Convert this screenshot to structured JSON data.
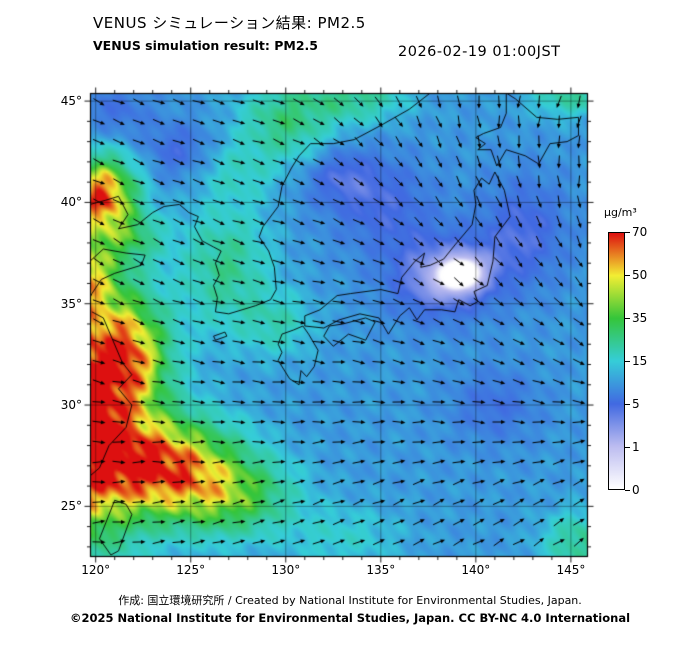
{
  "header": {
    "title_jp": "VENUS シミュレーション結果: PM2.5",
    "title_en": "VENUS simulation result: PM2.5",
    "timestamp": "2026-02-19 01:00JST"
  },
  "map": {
    "lat_labels": [
      {
        "label": "45°",
        "value": 45
      },
      {
        "label": "40°",
        "value": 40
      },
      {
        "label": "35°",
        "value": 35
      },
      {
        "label": "30°",
        "value": 30
      },
      {
        "label": "25°",
        "value": 25
      }
    ],
    "lon_labels": [
      {
        "label": "120°",
        "value": 120
      },
      {
        "label": "125°",
        "value": 125
      },
      {
        "label": "130°",
        "value": 130
      },
      {
        "label": "135°",
        "value": 135
      },
      {
        "label": "140°",
        "value": 140
      },
      {
        "label": "145°",
        "value": 145
      }
    ]
  },
  "colorbar": {
    "unit": "µg/m³",
    "tick_labels": [
      "70",
      "50",
      "35",
      "15",
      "5",
      "1",
      "0"
    ]
  },
  "footer": {
    "credit": "作成: 国立環境研究所 / Created by National Institute for Environmental Studies, Japan.",
    "license": "©2025 National Institute for Environmental Studies, Japan. CC BY-NC 4.0 International"
  },
  "chart_data": {
    "type": "heatmap",
    "title": "VENUS simulation result: PM2.5",
    "unit": "µg/m³",
    "lon_range": [
      119.7,
      145.9
    ],
    "lat_range": [
      22.5,
      45.4
    ],
    "lon_gridlines": [
      120,
      125,
      130,
      135,
      140,
      145
    ],
    "lat_gridlines": [
      25,
      30,
      35,
      40,
      45
    ],
    "scale_values": [
      0,
      1,
      5,
      15,
      35,
      50,
      70
    ],
    "scale_colors": [
      "#ffffff",
      "#bcbcf0",
      "#4169e1",
      "#35cdd8",
      "#35c53a",
      "#f2ee33",
      "#dd1010"
    ],
    "base_level": 10,
    "plumes": [
      {
        "lon": 118.5,
        "lat": 29.5,
        "amp": 75,
        "rx": 3.6,
        "ry": 5.5
      },
      {
        "lon": 119.0,
        "lat": 36.5,
        "amp": 35,
        "rx": 2.0,
        "ry": 2.0
      },
      {
        "lon": 120.3,
        "lat": 40.3,
        "amp": 55,
        "rx": 1.6,
        "ry": 1.7
      },
      {
        "lon": 122.0,
        "lat": 38.3,
        "amp": 15,
        "rx": 1.5,
        "ry": 1.2
      },
      {
        "lon": 121.8,
        "lat": 32.5,
        "amp": 35,
        "rx": 1.8,
        "ry": 2.5
      },
      {
        "lon": 123.5,
        "lat": 27.0,
        "amp": 50,
        "rx": 3.5,
        "ry": 2.2
      },
      {
        "lon": 127.0,
        "lat": 25.5,
        "amp": 25,
        "rx": 3.0,
        "ry": 1.8
      },
      {
        "lon": 126.8,
        "lat": 36.8,
        "amp": 14,
        "rx": 2.2,
        "ry": 2.8
      },
      {
        "lon": 129.5,
        "lat": 34.0,
        "amp": 9,
        "rx": 1.8,
        "ry": 1.5
      },
      {
        "lon": 130.0,
        "lat": 44.0,
        "amp": 16,
        "rx": 2.2,
        "ry": 1.8
      },
      {
        "lon": 133.5,
        "lat": 45.2,
        "amp": 14,
        "rx": 2.5,
        "ry": 1.2
      },
      {
        "lon": 127.5,
        "lat": 41.5,
        "amp": 7,
        "rx": 2.0,
        "ry": 1.5
      },
      {
        "lon": 138.0,
        "lat": 36.2,
        "amp": -7.5,
        "rx": 2.8,
        "ry": 2.2
      },
      {
        "lon": 139.5,
        "lat": 36.5,
        "amp": -5,
        "rx": 1.5,
        "ry": 1.2
      },
      {
        "lon": 135.0,
        "lat": 40.0,
        "amp": -5,
        "rx": 3.0,
        "ry": 2.5
      },
      {
        "lon": 142.5,
        "lat": 38.5,
        "amp": -5.5,
        "rx": 2.5,
        "ry": 3.0
      },
      {
        "lon": 124.5,
        "lat": 42.5,
        "amp": -5,
        "rx": 2.0,
        "ry": 1.5
      },
      {
        "lon": 121.0,
        "lat": 44.5,
        "amp": -4,
        "rx": 2.0,
        "ry": 1.5
      },
      {
        "lon": 145.5,
        "lat": 23.2,
        "amp": 14,
        "rx": 1.8,
        "ry": 1.4
      },
      {
        "lon": 133.0,
        "lat": 23.5,
        "amp": 6,
        "rx": 3.0,
        "ry": 1.5
      },
      {
        "lon": 145.0,
        "lat": 45.3,
        "amp": 12,
        "rx": 2.0,
        "ry": 1.0
      },
      {
        "lon": 141.0,
        "lat": 30.0,
        "amp": -4,
        "rx": 2.5,
        "ry": 2.0
      },
      {
        "lon": 132.5,
        "lat": 41.5,
        "amp": -4,
        "rx": 2.0,
        "ry": 1.5
      }
    ],
    "wind": {
      "lons": [
        120,
        124.3,
        128.7,
        133,
        137.3,
        141.7,
        146
      ],
      "lats": [
        45,
        41,
        37,
        33,
        29,
        25
      ],
      "angles": [
        [
          -25,
          -20,
          -15,
          -40,
          -70,
          -95,
          -110
        ],
        [
          -25,
          -20,
          -20,
          -35,
          -55,
          -75,
          -90
        ],
        [
          -30,
          -25,
          -15,
          -15,
          -35,
          -50,
          -60
        ],
        [
          -20,
          -15,
          -10,
          -10,
          -20,
          -30,
          -35
        ],
        [
          -5,
          -5,
          0,
          5,
          0,
          -5,
          5
        ],
        [
          5,
          10,
          15,
          20,
          25,
          30,
          35
        ]
      ]
    },
    "coastlines": [
      {
        "name": "honshu",
        "points": [
          [
            141.0,
            41.5
          ],
          [
            141.5,
            40.6
          ],
          [
            141.8,
            39.3
          ],
          [
            141.0,
            38.3
          ],
          [
            140.9,
            37.1
          ],
          [
            140.6,
            35.9
          ],
          [
            139.9,
            35.6
          ],
          [
            140.1,
            35.1
          ],
          [
            139.7,
            34.9
          ],
          [
            139.1,
            35.2
          ],
          [
            138.9,
            34.6
          ],
          [
            138.2,
            34.7
          ],
          [
            137.3,
            34.7
          ],
          [
            136.9,
            34.2
          ],
          [
            136.5,
            34.8
          ],
          [
            136.0,
            34.4
          ],
          [
            135.4,
            33.5
          ],
          [
            134.9,
            34.3
          ],
          [
            133.9,
            34.5
          ],
          [
            132.8,
            34.2
          ],
          [
            132.0,
            33.8
          ],
          [
            131.0,
            33.9
          ],
          [
            131.0,
            34.4
          ],
          [
            131.8,
            34.7
          ],
          [
            132.7,
            35.4
          ],
          [
            133.4,
            35.5
          ],
          [
            135.0,
            35.7
          ],
          [
            135.9,
            35.5
          ],
          [
            136.1,
            36.3
          ],
          [
            136.8,
            37.1
          ],
          [
            137.3,
            37.5
          ],
          [
            137.1,
            36.8
          ],
          [
            137.6,
            36.9
          ],
          [
            138.3,
            37.2
          ],
          [
            138.9,
            37.9
          ],
          [
            139.8,
            38.9
          ],
          [
            140.0,
            39.9
          ],
          [
            139.9,
            40.6
          ],
          [
            140.3,
            41.2
          ],
          [
            140.7,
            40.9
          ],
          [
            141.0,
            41.5
          ]
        ]
      },
      {
        "name": "hokkaido",
        "points": [
          [
            140.1,
            42.6
          ],
          [
            140.8,
            42.6
          ],
          [
            141.1,
            41.8
          ],
          [
            141.6,
            42.6
          ],
          [
            142.6,
            42.3
          ],
          [
            143.3,
            41.9
          ],
          [
            143.9,
            42.9
          ],
          [
            144.8,
            43.0
          ],
          [
            145.4,
            43.3
          ],
          [
            145.4,
            44.2
          ],
          [
            144.3,
            44.1
          ],
          [
            143.2,
            44.2
          ],
          [
            142.1,
            45.1
          ],
          [
            141.6,
            45.4
          ],
          [
            141.6,
            44.4
          ],
          [
            141.3,
            43.7
          ],
          [
            140.4,
            43.4
          ],
          [
            140.0,
            43.2
          ],
          [
            140.5,
            42.9
          ],
          [
            140.1,
            42.6
          ]
        ]
      },
      {
        "name": "kyushu",
        "points": [
          [
            130.9,
            33.9
          ],
          [
            130.4,
            33.7
          ],
          [
            129.8,
            33.5
          ],
          [
            129.6,
            33.0
          ],
          [
            129.8,
            32.6
          ],
          [
            129.6,
            32.2
          ],
          [
            130.2,
            31.3
          ],
          [
            130.7,
            31.0
          ],
          [
            130.8,
            31.7
          ],
          [
            131.1,
            31.4
          ],
          [
            131.5,
            31.9
          ],
          [
            131.7,
            32.7
          ],
          [
            131.2,
            33.5
          ],
          [
            130.9,
            33.9
          ]
        ]
      },
      {
        "name": "shikoku",
        "points": [
          [
            132.0,
            33.4
          ],
          [
            132.5,
            32.9
          ],
          [
            133.3,
            33.5
          ],
          [
            134.2,
            33.2
          ],
          [
            134.7,
            34.1
          ],
          [
            134.2,
            34.3
          ],
          [
            133.0,
            34.0
          ],
          [
            132.3,
            33.9
          ],
          [
            132.0,
            33.4
          ]
        ]
      },
      {
        "name": "korea-and-ne-coast",
        "points": [
          [
            119.7,
            39.9
          ],
          [
            120.5,
            40.1
          ],
          [
            121.2,
            40.3
          ],
          [
            121.7,
            39.4
          ],
          [
            121.2,
            38.7
          ],
          [
            122.2,
            38.9
          ],
          [
            123.0,
            39.5
          ],
          [
            123.6,
            39.8
          ],
          [
            124.4,
            39.9
          ],
          [
            124.9,
            39.5
          ],
          [
            125.4,
            39.3
          ],
          [
            125.2,
            38.8
          ],
          [
            125.6,
            38.1
          ],
          [
            126.2,
            37.8
          ],
          [
            126.6,
            37.6
          ],
          [
            126.3,
            37.0
          ],
          [
            126.5,
            36.4
          ],
          [
            126.2,
            35.9
          ],
          [
            126.4,
            35.3
          ],
          [
            126.3,
            34.6
          ],
          [
            127.0,
            34.5
          ],
          [
            127.7,
            34.7
          ],
          [
            128.4,
            34.9
          ],
          [
            129.2,
            35.2
          ],
          [
            129.5,
            35.7
          ],
          [
            129.4,
            36.8
          ],
          [
            129.1,
            37.6
          ],
          [
            128.6,
            38.3
          ],
          [
            128.8,
            38.8
          ],
          [
            129.6,
            39.8
          ],
          [
            129.8,
            40.8
          ],
          [
            130.3,
            41.7
          ],
          [
            130.7,
            42.3
          ],
          [
            131.3,
            42.9
          ],
          [
            132.5,
            42.9
          ],
          [
            133.6,
            43.1
          ],
          [
            135.0,
            43.8
          ],
          [
            136.5,
            44.6
          ],
          [
            137.6,
            45.4
          ]
        ]
      },
      {
        "name": "shandong",
        "points": [
          [
            119.7,
            37.1
          ],
          [
            120.4,
            37.7
          ],
          [
            121.6,
            37.5
          ],
          [
            122.6,
            37.4
          ],
          [
            122.4,
            36.9
          ],
          [
            121.0,
            36.5
          ],
          [
            120.3,
            36.2
          ],
          [
            119.8,
            35.5
          ],
          [
            119.7,
            35.3
          ]
        ]
      },
      {
        "name": "china-east-coast",
        "points": [
          [
            119.8,
            34.6
          ],
          [
            120.4,
            34.3
          ],
          [
            120.9,
            33.2
          ],
          [
            121.4,
            32.1
          ],
          [
            121.9,
            31.5
          ],
          [
            121.2,
            30.8
          ],
          [
            121.9,
            30.0
          ],
          [
            121.6,
            28.9
          ],
          [
            120.7,
            28.0
          ],
          [
            120.2,
            26.9
          ],
          [
            119.7,
            26.5
          ]
        ]
      },
      {
        "name": "taiwan",
        "points": [
          [
            120.2,
            23.4
          ],
          [
            120.8,
            22.6
          ],
          [
            121.2,
            22.8
          ],
          [
            121.9,
            24.6
          ],
          [
            121.6,
            25.1
          ],
          [
            121.0,
            25.3
          ],
          [
            120.2,
            23.4
          ]
        ]
      },
      {
        "name": "jeju",
        "points": [
          [
            126.2,
            33.4
          ],
          [
            126.8,
            33.6
          ],
          [
            126.9,
            33.4
          ],
          [
            126.3,
            33.2
          ],
          [
            126.2,
            33.4
          ]
        ]
      }
    ]
  }
}
